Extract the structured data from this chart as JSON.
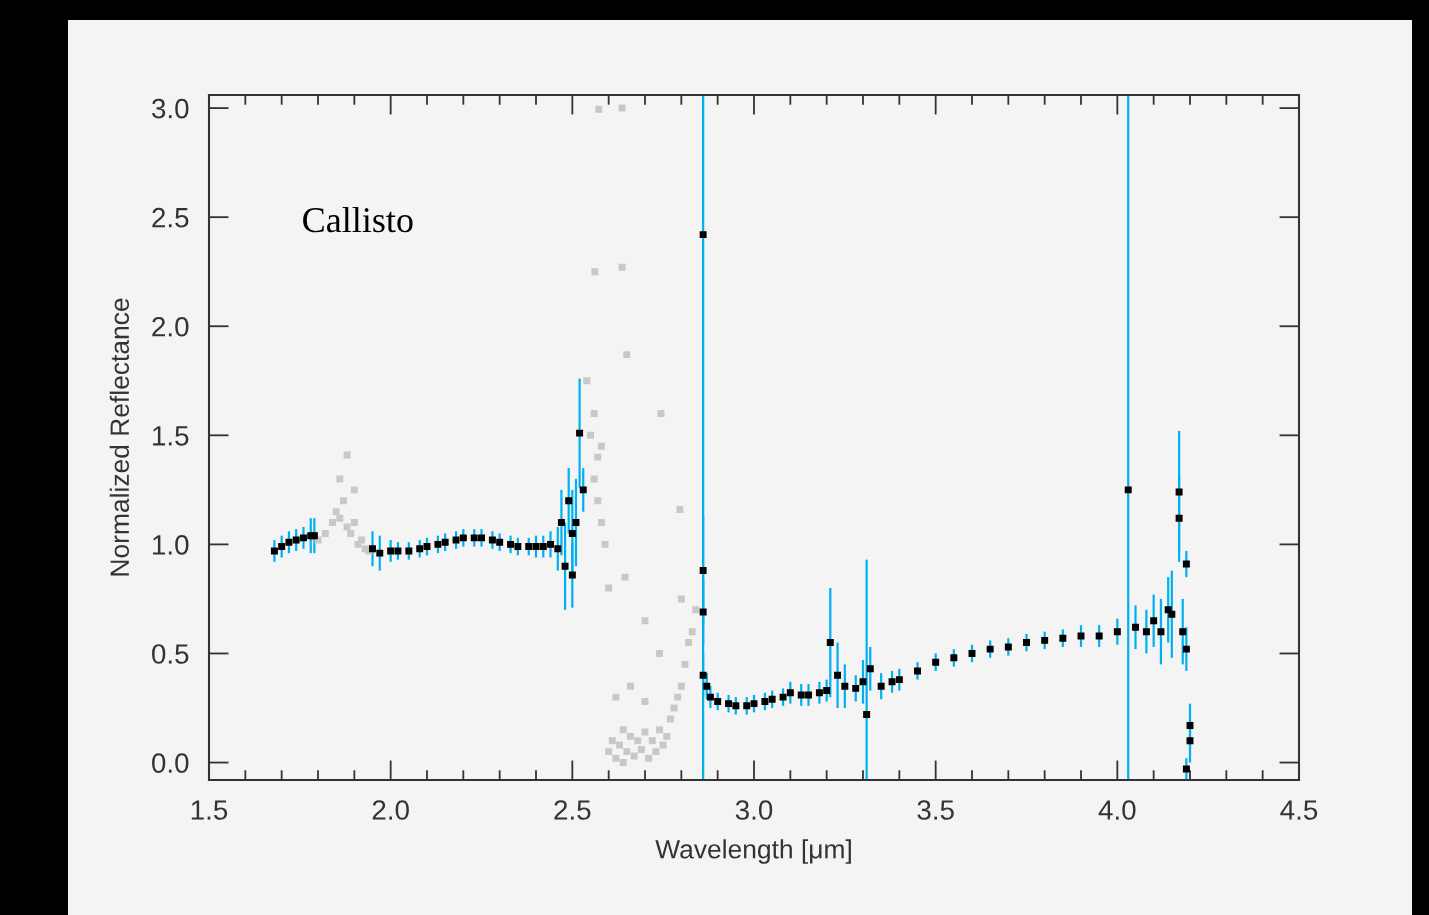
{
  "chart_data": {
    "type": "scatter",
    "xlabel": "Wavelength [μm]",
    "ylabel": "Normalized Reflectance",
    "annotations": [
      "Callisto"
    ],
    "xlim": [
      1.5,
      4.5
    ],
    "xticks": [
      {
        "value": 1.5,
        "label": "1.5"
      },
      {
        "value": 2.0,
        "label": "2.0"
      },
      {
        "value": 2.5,
        "label": "2.5"
      },
      {
        "value": 3.0,
        "label": "3.0"
      },
      {
        "value": 3.5,
        "label": "3.5"
      },
      {
        "value": 4.0,
        "label": "4.0"
      },
      {
        "value": 4.5,
        "label": "4.5"
      }
    ],
    "ylim": [
      -0.08,
      3.06
    ],
    "yticks": [
      {
        "value": 0,
        "label": "0.0"
      },
      {
        "value": 0.5,
        "label": "0.5"
      },
      {
        "value": 1.0,
        "label": "1.0"
      },
      {
        "value": 1.5,
        "label": "1.5"
      },
      {
        "value": 2.0,
        "label": "2.0"
      },
      {
        "value": 2.5,
        "label": "2.5"
      },
      {
        "value": 3.0,
        "label": "3.0"
      }
    ],
    "grid": false,
    "marker": "square",
    "series": [
      {
        "color": "#c8c8c8",
        "x": [
          1.8,
          1.82,
          1.84,
          1.85,
          1.86,
          1.87,
          1.88,
          1.89,
          1.9,
          1.91,
          1.92,
          1.93,
          1.94,
          1.86,
          1.88,
          1.9,
          2.54,
          2.55,
          2.56,
          2.56,
          2.57,
          2.57,
          2.58,
          2.58,
          2.59,
          2.6,
          2.6,
          2.61,
          2.62,
          2.63,
          2.64,
          2.64,
          2.65,
          2.66,
          2.67,
          2.68,
          2.69,
          2.7,
          2.71,
          2.72,
          2.73,
          2.74,
          2.75,
          2.76,
          2.77,
          2.78,
          2.79,
          2.8,
          2.81,
          2.82,
          2.83,
          2.84,
          2.62,
          2.66,
          2.7,
          2.74,
          2.8,
          2.573,
          2.637,
          2.562,
          2.637,
          2.65,
          2.744,
          2.796,
          2.645,
          2.7
        ],
        "values": [
          1.02,
          1.05,
          1.1,
          1.15,
          1.12,
          1.2,
          1.08,
          1.05,
          1.1,
          1.0,
          1.02,
          0.98,
          0.97,
          1.3,
          1.41,
          1.25,
          1.75,
          1.5,
          1.3,
          1.6,
          1.2,
          1.4,
          1.1,
          1.45,
          1.0,
          0.8,
          0.05,
          0.1,
          0.02,
          0.08,
          0.0,
          0.15,
          0.05,
          0.12,
          0.03,
          0.1,
          0.06,
          0.14,
          0.02,
          0.1,
          0.05,
          0.15,
          0.08,
          0.12,
          0.2,
          0.25,
          0.3,
          0.35,
          0.45,
          0.55,
          0.6,
          0.7,
          0.3,
          0.35,
          0.28,
          0.5,
          0.75,
          2.995,
          3.0,
          2.25,
          2.27,
          1.87,
          1.6,
          1.16,
          0.85,
          0.65
        ]
      },
      {
        "color": "#000000",
        "x": [
          1.68,
          1.7,
          1.72,
          1.74,
          1.76,
          1.78,
          1.79,
          1.95,
          1.97,
          2.0,
          2.02,
          2.05,
          2.08,
          2.1,
          2.13,
          2.15,
          2.18,
          2.2,
          2.23,
          2.25,
          2.28,
          2.3,
          2.33,
          2.35,
          2.38,
          2.4,
          2.42,
          2.44,
          2.46,
          2.47,
          2.48,
          2.49,
          2.5,
          2.5,
          2.51,
          2.52,
          2.53,
          2.86,
          2.86,
          2.86,
          2.86,
          2.87,
          2.88,
          2.9,
          2.93,
          2.95,
          2.98,
          3.0,
          3.03,
          3.05,
          3.08,
          3.1,
          3.13,
          3.15,
          3.18,
          3.2,
          3.21,
          3.23,
          3.25,
          3.28,
          3.3,
          3.31,
          3.32,
          3.35,
          3.38,
          3.4,
          3.45,
          3.5,
          3.55,
          3.6,
          3.65,
          3.7,
          3.75,
          3.8,
          3.85,
          3.9,
          3.95,
          4.0,
          4.03,
          4.05,
          4.08,
          4.1,
          4.12,
          4.14,
          4.15,
          4.17,
          4.17,
          4.18,
          4.19,
          4.19,
          4.2,
          4.2,
          4.19
        ],
        "values": [
          0.97,
          0.99,
          1.01,
          1.02,
          1.03,
          1.04,
          1.04,
          0.98,
          0.96,
          0.97,
          0.97,
          0.97,
          0.98,
          0.99,
          1.0,
          1.01,
          1.02,
          1.03,
          1.03,
          1.03,
          1.02,
          1.01,
          1.0,
          0.99,
          0.99,
          0.99,
          0.99,
          1.0,
          0.98,
          1.1,
          0.9,
          1.2,
          0.86,
          1.05,
          1.1,
          1.51,
          1.25,
          2.42,
          0.88,
          0.69,
          0.4,
          0.35,
          0.3,
          0.28,
          0.27,
          0.26,
          0.26,
          0.27,
          0.28,
          0.29,
          0.3,
          0.32,
          0.31,
          0.31,
          0.32,
          0.33,
          0.55,
          0.4,
          0.35,
          0.34,
          0.37,
          0.22,
          0.43,
          0.35,
          0.37,
          0.38,
          0.42,
          0.46,
          0.48,
          0.5,
          0.52,
          0.53,
          0.55,
          0.56,
          0.57,
          0.58,
          0.58,
          0.6,
          1.25,
          0.62,
          0.6,
          0.65,
          0.6,
          0.7,
          0.68,
          1.24,
          1.12,
          0.6,
          0.91,
          0.52,
          0.17,
          0.1,
          -0.03
        ],
        "errors": [
          0.05,
          0.05,
          0.05,
          0.05,
          0.05,
          0.08,
          0.08,
          0.08,
          0.08,
          0.05,
          0.04,
          0.04,
          0.04,
          0.04,
          0.04,
          0.04,
          0.04,
          0.04,
          0.04,
          0.04,
          0.04,
          0.04,
          0.04,
          0.04,
          0.04,
          0.05,
          0.05,
          0.06,
          0.1,
          0.15,
          0.2,
          0.15,
          0.15,
          0.2,
          0.2,
          0.25,
          0.1,
          [
            -0.08,
            3.06
          ],
          0.25,
          0.15,
          0.1,
          0.06,
          0.05,
          0.04,
          0.04,
          0.04,
          0.04,
          0.04,
          0.04,
          0.04,
          0.04,
          0.05,
          0.05,
          0.05,
          0.05,
          0.05,
          0.25,
          0.15,
          0.1,
          0.06,
          0.1,
          [
            -0.08,
            0.93
          ],
          0.1,
          0.06,
          0.05,
          0.05,
          0.04,
          0.04,
          0.04,
          0.04,
          0.04,
          0.04,
          0.04,
          0.04,
          0.04,
          0.05,
          0.05,
          0.06,
          [
            -0.08,
            3.06
          ],
          0.1,
          0.1,
          0.12,
          0.15,
          0.15,
          0.2,
          0.28,
          0.2,
          0.15,
          0.06,
          0.1,
          0.1,
          0.1,
          0.05
        ]
      }
    ]
  }
}
